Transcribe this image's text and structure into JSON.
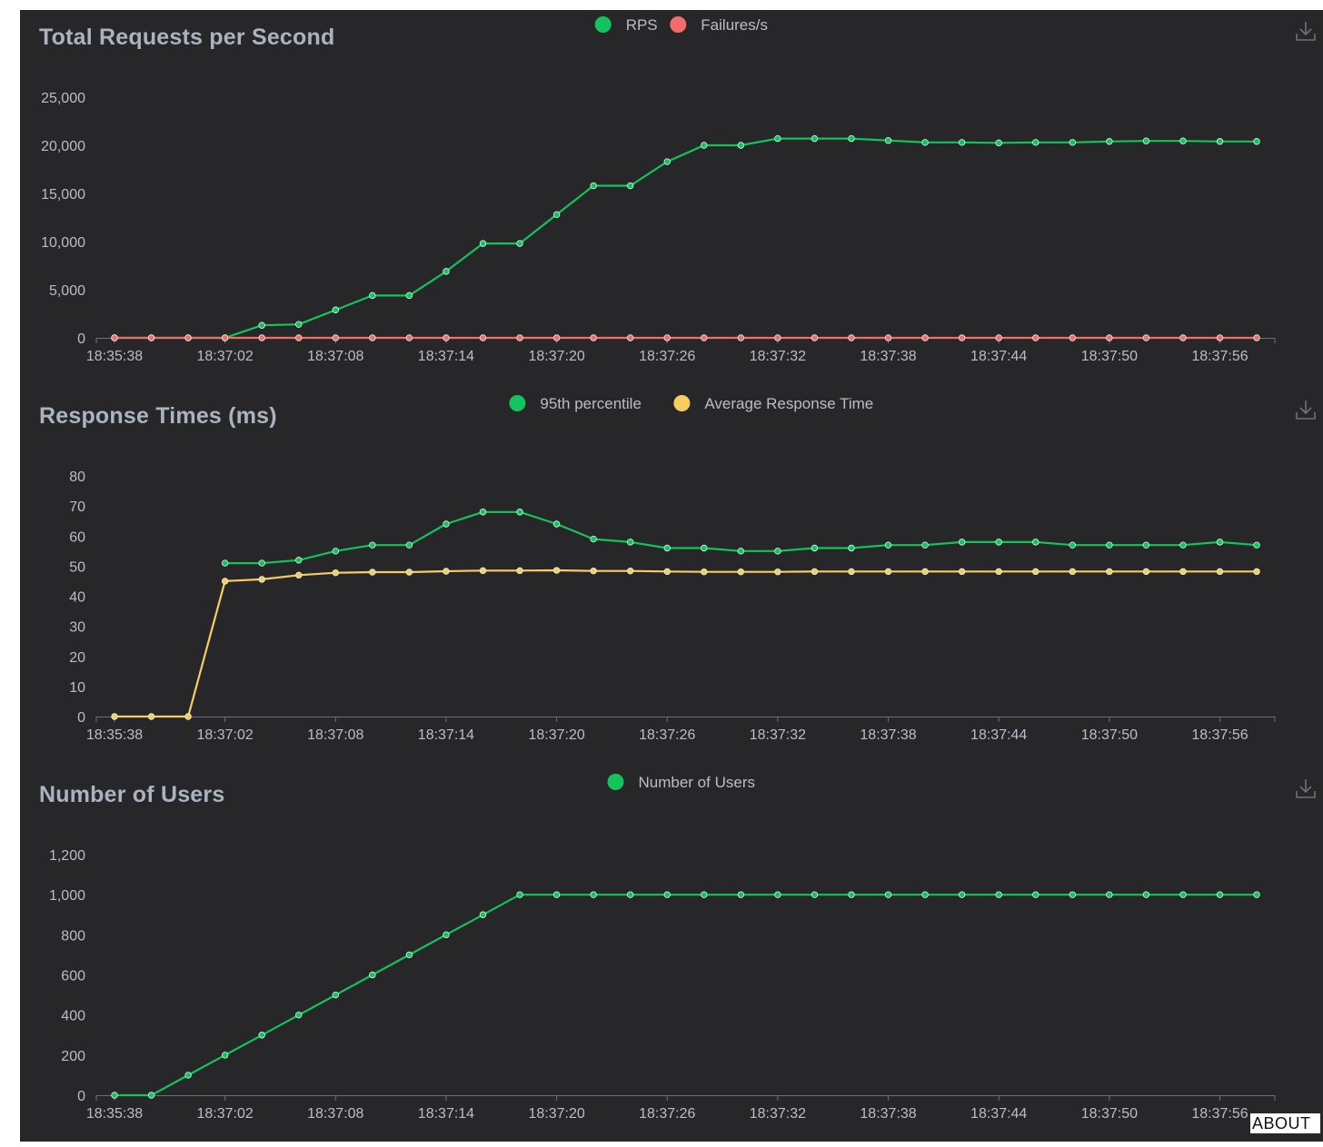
{
  "footer": {
    "about_label": "ABOUT"
  },
  "icons": {
    "download": "download-icon"
  },
  "colors": {
    "background": "#27272a",
    "axis": "#6e7079",
    "label": "#b9bec6",
    "title": "#aab4be",
    "green": "#13c35b",
    "red": "#f36b6b",
    "yellow": "#f7cd62"
  },
  "chart_data": [
    {
      "type": "line",
      "title": "Total Requests per Second",
      "x": [
        "18:35:38",
        "18:35:39",
        "18:35:40",
        "18:37:02",
        "18:37:04",
        "18:37:06",
        "18:37:08",
        "18:37:10",
        "18:37:12",
        "18:37:14",
        "18:37:16",
        "18:37:18",
        "18:37:20",
        "18:37:22",
        "18:37:24",
        "18:37:26",
        "18:37:28",
        "18:37:30",
        "18:37:32",
        "18:37:34",
        "18:37:36",
        "18:37:38",
        "18:37:40",
        "18:37:42",
        "18:37:44",
        "18:37:46",
        "18:37:48",
        "18:37:50",
        "18:37:52",
        "18:37:54",
        "18:37:56",
        "18:37:58"
      ],
      "xticks": [
        "18:35:38",
        "18:37:02",
        "18:37:08",
        "18:37:14",
        "18:37:20",
        "18:37:26",
        "18:37:32",
        "18:37:38",
        "18:37:44",
        "18:37:50",
        "18:37:56"
      ],
      "ylim": [
        0,
        25000
      ],
      "yticks": [
        0,
        5000,
        10000,
        15000,
        20000,
        25000
      ],
      "ytick_labels": [
        "0",
        "5,000",
        "10,000",
        "15,000",
        "20,000",
        "25,000"
      ],
      "legend_position": "top-center",
      "series": [
        {
          "name": "RPS",
          "color": "#13c35b",
          "values": [
            0,
            0,
            0,
            0,
            1300,
            1400,
            2900,
            4400,
            4400,
            6900,
            9800,
            9800,
            12800,
            15800,
            15800,
            18300,
            20000,
            20000,
            20700,
            20700,
            20700,
            20500,
            20300,
            20300,
            20250,
            20300,
            20300,
            20400,
            20450,
            20450,
            20400,
            20400
          ]
        },
        {
          "name": "Failures/s",
          "color": "#f36b6b",
          "values": [
            0,
            0,
            0,
            0,
            0,
            0,
            0,
            0,
            0,
            0,
            0,
            0,
            0,
            0,
            0,
            0,
            0,
            0,
            0,
            0,
            0,
            0,
            0,
            0,
            0,
            0,
            0,
            0,
            0,
            0,
            0,
            0
          ]
        }
      ]
    },
    {
      "type": "line",
      "title": "Response Times (ms)",
      "x": [
        "18:35:38",
        "18:35:39",
        "18:35:40",
        "18:37:02",
        "18:37:04",
        "18:37:06",
        "18:37:08",
        "18:37:10",
        "18:37:12",
        "18:37:14",
        "18:37:16",
        "18:37:18",
        "18:37:20",
        "18:37:22",
        "18:37:24",
        "18:37:26",
        "18:37:28",
        "18:37:30",
        "18:37:32",
        "18:37:34",
        "18:37:36",
        "18:37:38",
        "18:37:40",
        "18:37:42",
        "18:37:44",
        "18:37:46",
        "18:37:48",
        "18:37:50",
        "18:37:52",
        "18:37:54",
        "18:37:56",
        "18:37:58"
      ],
      "xticks": [
        "18:35:38",
        "18:37:02",
        "18:37:08",
        "18:37:14",
        "18:37:20",
        "18:37:26",
        "18:37:32",
        "18:37:38",
        "18:37:44",
        "18:37:50",
        "18:37:56"
      ],
      "ylim": [
        0,
        80
      ],
      "yticks": [
        0,
        10,
        20,
        30,
        40,
        50,
        60,
        70,
        80
      ],
      "ytick_labels": [
        "0",
        "10",
        "20",
        "30",
        "40",
        "50",
        "60",
        "70",
        "80"
      ],
      "legend_position": "top-center",
      "series": [
        {
          "name": "95th percentile",
          "color": "#13c35b",
          "values": [
            null,
            null,
            null,
            51,
            51,
            52,
            55,
            57,
            57,
            64,
            68,
            68,
            64,
            59,
            58,
            56,
            56,
            55,
            55,
            56,
            56,
            57,
            57,
            58,
            58,
            58,
            57,
            57,
            57,
            57,
            58,
            57
          ]
        },
        {
          "name": "Average Response Time",
          "color": "#f7cd62",
          "values": [
            0,
            0,
            0,
            45,
            45.6,
            47,
            47.8,
            48,
            48,
            48.3,
            48.5,
            48.5,
            48.6,
            48.4,
            48.4,
            48.2,
            48.1,
            48.1,
            48.1,
            48.2,
            48.2,
            48.2,
            48.2,
            48.2,
            48.2,
            48.2,
            48.2,
            48.2,
            48.2,
            48.2,
            48.2,
            48.2
          ]
        }
      ]
    },
    {
      "type": "line",
      "title": "Number of Users",
      "x": [
        "18:35:38",
        "18:35:39",
        "18:35:40",
        "18:37:02",
        "18:37:04",
        "18:37:06",
        "18:37:08",
        "18:37:10",
        "18:37:12",
        "18:37:14",
        "18:37:16",
        "18:37:18",
        "18:37:20",
        "18:37:22",
        "18:37:24",
        "18:37:26",
        "18:37:28",
        "18:37:30",
        "18:37:32",
        "18:37:34",
        "18:37:36",
        "18:37:38",
        "18:37:40",
        "18:37:42",
        "18:37:44",
        "18:37:46",
        "18:37:48",
        "18:37:50",
        "18:37:52",
        "18:37:54",
        "18:37:56",
        "18:37:58"
      ],
      "xticks": [
        "18:35:38",
        "18:37:02",
        "18:37:08",
        "18:37:14",
        "18:37:20",
        "18:37:26",
        "18:37:32",
        "18:37:38",
        "18:37:44",
        "18:37:50",
        "18:37:56"
      ],
      "ylim": [
        0,
        1200
      ],
      "yticks": [
        0,
        200,
        400,
        600,
        800,
        1000,
        1200
      ],
      "ytick_labels": [
        "0",
        "200",
        "400",
        "600",
        "800",
        "1,000",
        "1,200"
      ],
      "legend_position": "top-center",
      "series": [
        {
          "name": "Number of Users",
          "color": "#13c35b",
          "values": [
            0,
            0,
            100,
            200,
            300,
            400,
            500,
            600,
            700,
            800,
            900,
            1000,
            1000,
            1000,
            1000,
            1000,
            1000,
            1000,
            1000,
            1000,
            1000,
            1000,
            1000,
            1000,
            1000,
            1000,
            1000,
            1000,
            1000,
            1000,
            1000,
            1000
          ]
        }
      ]
    }
  ]
}
